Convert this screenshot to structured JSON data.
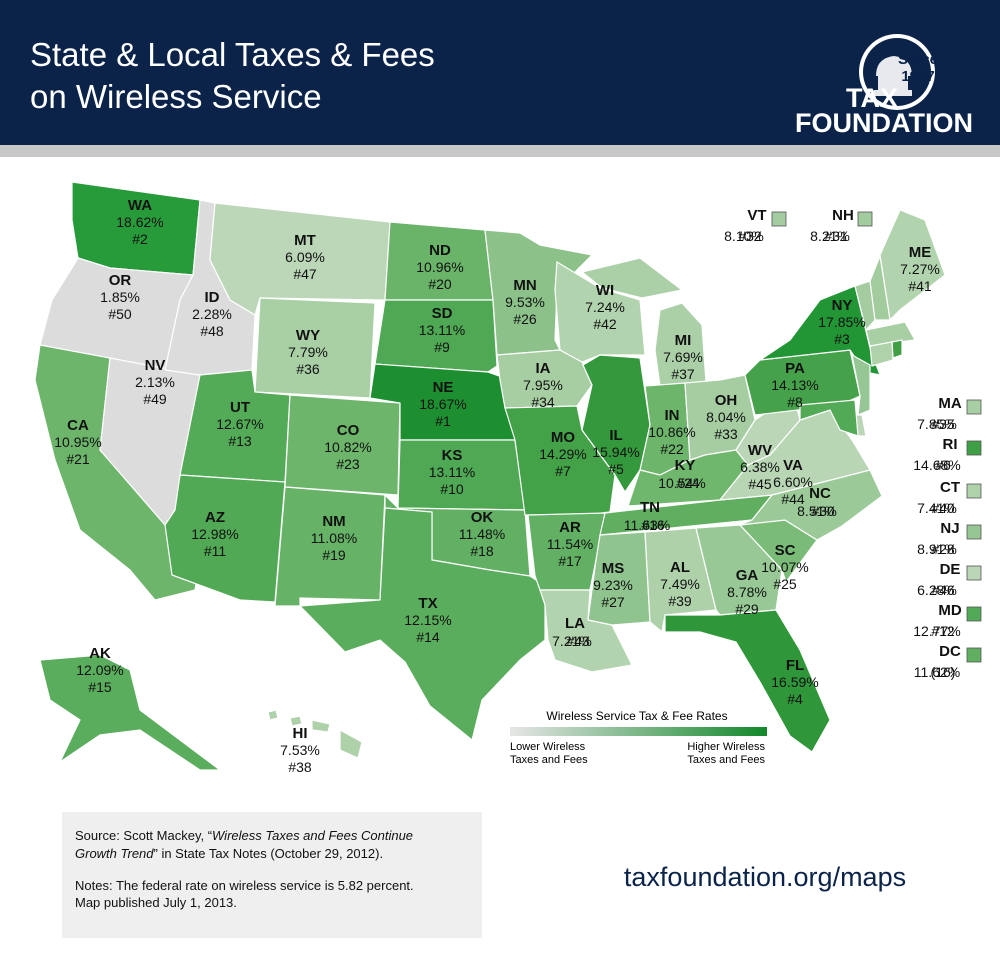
{
  "header": {
    "title": [
      "State & Local Taxes & Fees",
      "on Wireless Service"
    ],
    "logo": {
      "since": "Since",
      "year": "1937",
      "line1": "TAX",
      "line2": "FOUNDATION"
    }
  },
  "states": [
    {
      "id": "WA",
      "rate": "18.62%",
      "rank": "#2",
      "color": "#279a3a"
    },
    {
      "id": "OR",
      "rate": "1.85%",
      "rank": "#50",
      "color": "#dcdcdc"
    },
    {
      "id": "CA",
      "rate": "10.95%",
      "rank": "#21",
      "color": "#6cb56b"
    },
    {
      "id": "NV",
      "rate": "2.13%",
      "rank": "#49",
      "color": "#dcdcdc"
    },
    {
      "id": "ID",
      "rate": "2.28%",
      "rank": "#48",
      "color": "#dcdcdc"
    },
    {
      "id": "MT",
      "rate": "6.09%",
      "rank": "#47",
      "color": "#bcd7b8"
    },
    {
      "id": "WY",
      "rate": "7.79%",
      "rank": "#36",
      "color": "#a9cfa5"
    },
    {
      "id": "UT",
      "rate": "12.67%",
      "rank": "#13",
      "color": "#54ab57"
    },
    {
      "id": "CO",
      "rate": "10.82%",
      "rank": "#23",
      "color": "#6cb56b"
    },
    {
      "id": "AZ",
      "rate": "12.98%",
      "rank": "#11",
      "color": "#52a955"
    },
    {
      "id": "NM",
      "rate": "11.08%",
      "rank": "#19",
      "color": "#66b266"
    },
    {
      "id": "ND",
      "rate": "10.96%",
      "rank": "#20",
      "color": "#6ab469"
    },
    {
      "id": "SD",
      "rate": "13.11%",
      "rank": "#9",
      "color": "#4fa853"
    },
    {
      "id": "NE",
      "rate": "18.67%",
      "rank": "#1",
      "color": "#1d8f31"
    },
    {
      "id": "KS",
      "rate": "13.11%",
      "rank": "#10",
      "color": "#4fa853"
    },
    {
      "id": "OK",
      "rate": "11.48%",
      "rank": "#18",
      "color": "#62b063"
    },
    {
      "id": "TX",
      "rate": "12.15%",
      "rank": "#14",
      "color": "#5aad5c"
    },
    {
      "id": "MN",
      "rate": "9.53%",
      "rank": "#26",
      "color": "#8cc28a"
    },
    {
      "id": "IA",
      "rate": "7.95%",
      "rank": "#34",
      "color": "#a7cea3"
    },
    {
      "id": "MO",
      "rate": "14.29%",
      "rank": "#7",
      "color": "#43a148"
    },
    {
      "id": "AR",
      "rate": "11.54%",
      "rank": "#17",
      "color": "#62b063"
    },
    {
      "id": "LA",
      "rate": "7.21%",
      "rank": "#43",
      "color": "#b1d3ad"
    },
    {
      "id": "WI",
      "rate": "7.24%",
      "rank": "#42",
      "color": "#b1d3ad"
    },
    {
      "id": "IL",
      "rate": "15.94%",
      "rank": "#5",
      "color": "#33993c"
    },
    {
      "id": "MI",
      "rate": "7.69%",
      "rank": "#37",
      "color": "#abd0a7"
    },
    {
      "id": "IN",
      "rate": "10.86%",
      "rank": "#22",
      "color": "#6cb56b"
    },
    {
      "id": "OH",
      "rate": "8.04%",
      "rank": "#33",
      "color": "#a5cda1"
    },
    {
      "id": "KY",
      "rate": "10.54%",
      "rank": "#24",
      "color": "#70b76e"
    },
    {
      "id": "TN",
      "rate": "11.63%",
      "rank": "#16",
      "color": "#60af61"
    },
    {
      "id": "MS",
      "rate": "9.23%",
      "rank": "#27",
      "color": "#90c48e"
    },
    {
      "id": "AL",
      "rate": "7.49%",
      "rank": "#39",
      "color": "#aed1aa"
    },
    {
      "id": "GA",
      "rate": "8.78%",
      "rank": "#29",
      "color": "#98c895"
    },
    {
      "id": "FL",
      "rate": "16.59%",
      "rank": "#4",
      "color": "#2f973a"
    },
    {
      "id": "SC",
      "rate": "10.07%",
      "rank": "#25",
      "color": "#7abb78"
    },
    {
      "id": "NC",
      "rate": "8.51%",
      "rank": "#30",
      "color": "#9bc998"
    },
    {
      "id": "VA",
      "rate": "6.60%",
      "rank": "#44",
      "color": "#b8d5b4"
    },
    {
      "id": "WV",
      "rate": "6.38%",
      "rank": "#45",
      "color": "#bad6b6"
    },
    {
      "id": "PA",
      "rate": "14.13%",
      "rank": "#8",
      "color": "#45a24a"
    },
    {
      "id": "NY",
      "rate": "17.85%",
      "rank": "#3",
      "color": "#229535"
    },
    {
      "id": "ME",
      "rate": "7.27%",
      "rank": "#41",
      "color": "#b1d3ad"
    },
    {
      "id": "AK",
      "rate": "12.09%",
      "rank": "#15",
      "color": "#5aad5c"
    },
    {
      "id": "HI",
      "rate": "7.53%",
      "rank": "#38",
      "color": "#aed1aa"
    },
    {
      "id": "VT",
      "rate": "8.10%",
      "rank": "#32",
      "color": "#a4cca0"
    },
    {
      "id": "NH",
      "rate": "8.21%",
      "rank": "#31",
      "color": "#a2cb9e"
    },
    {
      "id": "MA",
      "rate": "7.85%",
      "rank": "#35",
      "color": "#a8cfa4"
    },
    {
      "id": "RI",
      "rate": "14.68%",
      "rank": "#6",
      "color": "#3e9f45"
    },
    {
      "id": "CT",
      "rate": "7.41%",
      "rank": "#40",
      "color": "#afd2ab"
    },
    {
      "id": "NJ",
      "rate": "8.91%",
      "rank": "#28",
      "color": "#96c693"
    },
    {
      "id": "DE",
      "rate": "6.28%",
      "rank": "#46",
      "color": "#bbd6b7"
    },
    {
      "id": "MD",
      "rate": "12.77%",
      "rank": "#12",
      "color": "#53aa56"
    },
    {
      "id": "DC",
      "rate": "11.62%",
      "rank": "(16)",
      "color": "#60af61"
    }
  ],
  "legend": {
    "title": "Wireless Service Tax & Fee Rates",
    "low": [
      "Lower Wireless",
      "Taxes and Fees"
    ],
    "high": [
      "Higher Wireless",
      "Taxes and Fees"
    ],
    "colors": [
      "#e6e6e6",
      "#12872a"
    ]
  },
  "source": {
    "prefix": "Source: Scott Mackey, “",
    "italic_1": "Wireless Taxes and Fees Continue",
    "italic_2": "Growth Trend",
    "suffix": "” in State Tax Notes (October 29, 2012)."
  },
  "notes": [
    "Notes: The federal rate on wireless service is 5.82 percent.",
    "Map published July 1, 2013."
  ],
  "url": "taxfoundation.org/maps"
}
